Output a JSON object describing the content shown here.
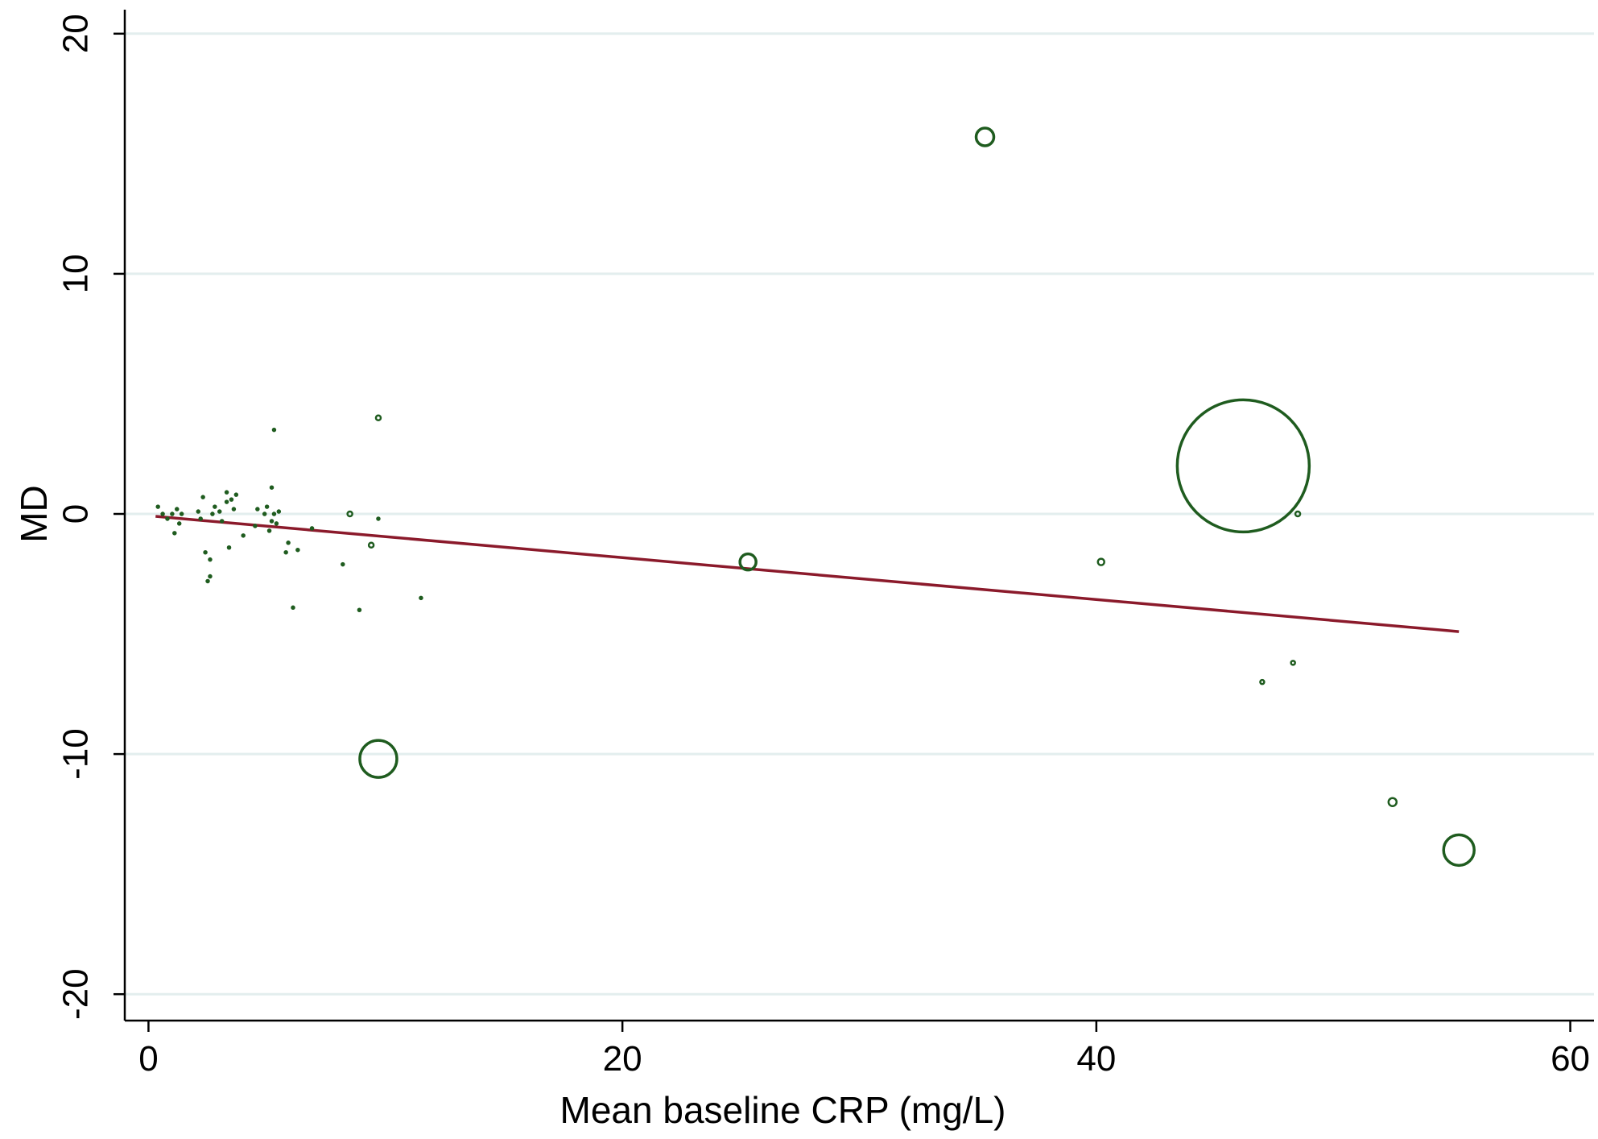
{
  "chart_data": {
    "type": "scatter",
    "title": "",
    "xlabel": "Mean baseline CRP (mg/L)",
    "ylabel": "MD",
    "xlim": [
      -1,
      61
    ],
    "ylim": [
      -21.1,
      21
    ],
    "x_ticks": [
      0,
      20,
      40,
      60
    ],
    "y_ticks": [
      -20,
      -10,
      0,
      10,
      20
    ],
    "x_tick_labels": [
      "0",
      "20",
      "40",
      "60"
    ],
    "y_tick_labels": [
      "-20",
      "-10",
      "0",
      "10",
      "20"
    ],
    "grid": "horizontal",
    "legend": "none",
    "point_style": "hollow circles sized by study weight",
    "colors": {
      "points": "#1f5c1f",
      "fit_line": "#8b1a2b",
      "grid": "#e3eeee",
      "axis": "#000000"
    },
    "series": [
      {
        "points": [
          {
            "x": 35.3,
            "y": 15.7,
            "size": 11
          },
          {
            "x": 9.7,
            "y": -10.2,
            "size": 23
          },
          {
            "x": 25.3,
            "y": -2.0,
            "size": 10
          },
          {
            "x": 46.2,
            "y": 2.0,
            "size": 82
          },
          {
            "x": 55.3,
            "y": -14.0,
            "size": 19
          },
          {
            "x": 52.5,
            "y": -12.0,
            "size": 5
          },
          {
            "x": 40.2,
            "y": -2.0,
            "size": 4
          },
          {
            "x": 48.5,
            "y": 0.0,
            "size": 3
          },
          {
            "x": 48.3,
            "y": -6.2,
            "size": 2.5
          },
          {
            "x": 47.0,
            "y": -7.0,
            "size": 2.5
          },
          {
            "x": 9.7,
            "y": 4.0,
            "size": 3
          },
          {
            "x": 8.5,
            "y": 0.0,
            "size": 3
          },
          {
            "x": 9.4,
            "y": -1.3,
            "size": 3
          },
          {
            "x": 0.4,
            "y": 0.3,
            "size": 1.5
          },
          {
            "x": 0.6,
            "y": 0.0,
            "size": 1.5
          },
          {
            "x": 0.8,
            "y": -0.2,
            "size": 1.5
          },
          {
            "x": 1.0,
            "y": 0.0,
            "size": 1.5
          },
          {
            "x": 1.1,
            "y": -0.8,
            "size": 1.5
          },
          {
            "x": 1.2,
            "y": 0.2,
            "size": 1.5
          },
          {
            "x": 1.3,
            "y": -0.4,
            "size": 1.5
          },
          {
            "x": 1.4,
            "y": 0.0,
            "size": 1.5
          },
          {
            "x": 2.1,
            "y": 0.1,
            "size": 1.5
          },
          {
            "x": 2.2,
            "y": -0.2,
            "size": 1.5
          },
          {
            "x": 2.3,
            "y": 0.7,
            "size": 1.5
          },
          {
            "x": 2.4,
            "y": -1.6,
            "size": 1.5
          },
          {
            "x": 2.5,
            "y": -2.8,
            "size": 1.5
          },
          {
            "x": 2.6,
            "y": -2.6,
            "size": 1.5
          },
          {
            "x": 2.6,
            "y": -1.9,
            "size": 1.5
          },
          {
            "x": 2.7,
            "y": 0.0,
            "size": 1.5
          },
          {
            "x": 2.8,
            "y": 0.3,
            "size": 1.5
          },
          {
            "x": 3.0,
            "y": 0.1,
            "size": 1.5
          },
          {
            "x": 3.1,
            "y": -0.3,
            "size": 1.5
          },
          {
            "x": 3.3,
            "y": 0.9,
            "size": 1.5
          },
          {
            "x": 3.3,
            "y": 0.5,
            "size": 1.5
          },
          {
            "x": 3.4,
            "y": -1.4,
            "size": 1.5
          },
          {
            "x": 3.5,
            "y": 0.6,
            "size": 1.5
          },
          {
            "x": 3.6,
            "y": 0.2,
            "size": 1.5
          },
          {
            "x": 3.7,
            "y": 0.8,
            "size": 1.5
          },
          {
            "x": 4.0,
            "y": -0.9,
            "size": 1.5
          },
          {
            "x": 4.5,
            "y": -0.5,
            "size": 1.5
          },
          {
            "x": 4.6,
            "y": 0.2,
            "size": 1.5
          },
          {
            "x": 4.9,
            "y": 0.0,
            "size": 1.5
          },
          {
            "x": 5.0,
            "y": 0.3,
            "size": 1.5
          },
          {
            "x": 5.1,
            "y": -0.7,
            "size": 1.5
          },
          {
            "x": 5.2,
            "y": -0.3,
            "size": 1.5
          },
          {
            "x": 5.2,
            "y": 1.1,
            "size": 1.5
          },
          {
            "x": 5.3,
            "y": 3.5,
            "size": 1.5
          },
          {
            "x": 5.3,
            "y": 0.0,
            "size": 1.5
          },
          {
            "x": 5.4,
            "y": -0.4,
            "size": 1.5
          },
          {
            "x": 5.5,
            "y": 0.1,
            "size": 1.5
          },
          {
            "x": 5.8,
            "y": -1.6,
            "size": 1.5
          },
          {
            "x": 5.9,
            "y": -1.2,
            "size": 1.5
          },
          {
            "x": 6.1,
            "y": -3.9,
            "size": 1.5
          },
          {
            "x": 6.3,
            "y": -1.5,
            "size": 1.5
          },
          {
            "x": 6.9,
            "y": -0.6,
            "size": 1.5
          },
          {
            "x": 8.2,
            "y": -2.1,
            "size": 1.5
          },
          {
            "x": 8.9,
            "y": -4.0,
            "size": 1.5
          },
          {
            "x": 9.7,
            "y": -0.2,
            "size": 1.5
          },
          {
            "x": 11.5,
            "y": -3.5,
            "size": 1.5
          }
        ]
      }
    ],
    "fit_line": {
      "x": [
        0.3,
        55.3
      ],
      "y": [
        -0.1,
        -4.9
      ]
    }
  }
}
